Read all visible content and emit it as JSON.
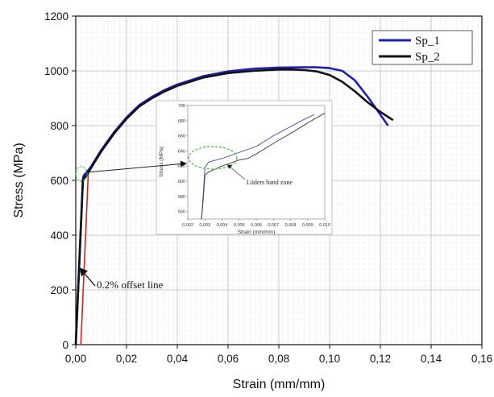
{
  "chart_data": [
    {
      "type": "line",
      "title": "",
      "xlabel": "Strain (mm/mm)",
      "ylabel": "Stress (MPa)",
      "xlim": [
        0,
        0.16
      ],
      "ylim": [
        0,
        1200
      ],
      "xticks": [
        0,
        0.02,
        0.04,
        0.06,
        0.08,
        0.1,
        0.12,
        0.14,
        0.16
      ],
      "xtick_labels": [
        "0,00",
        "0,02",
        "0,04",
        "0,06",
        "0,08",
        "0,10",
        "0,12",
        "0,14",
        "0,16"
      ],
      "yticks": [
        0,
        200,
        400,
        600,
        800,
        1000,
        1200
      ],
      "ytick_labels": [
        "0",
        "200",
        "400",
        "600",
        "800",
        "1000",
        "1200"
      ],
      "grid": true,
      "legend_position": "top-right",
      "series": [
        {
          "name": "Sp_1",
          "color": "#1f1fb4",
          "x": [
            0,
            0.0028,
            0.003,
            0.0035,
            0.004,
            0.005,
            0.006,
            0.008,
            0.01,
            0.015,
            0.02,
            0.025,
            0.03,
            0.035,
            0.04,
            0.05,
            0.06,
            0.07,
            0.08,
            0.09,
            0.095,
            0.1,
            0.105,
            0.11,
            0.115,
            0.12,
            0.123
          ],
          "y": [
            0,
            600,
            615,
            622,
            626,
            638,
            650,
            680,
            710,
            775,
            830,
            875,
            905,
            930,
            950,
            980,
            998,
            1008,
            1012,
            1013,
            1013,
            1010,
            1000,
            965,
            905,
            840,
            800
          ]
        },
        {
          "name": "Sp_2",
          "color": "#111111",
          "x": [
            0,
            0.0028,
            0.003,
            0.004,
            0.005,
            0.006,
            0.008,
            0.01,
            0.015,
            0.02,
            0.025,
            0.03,
            0.035,
            0.04,
            0.05,
            0.06,
            0.07,
            0.08,
            0.085,
            0.09,
            0.095,
            0.1,
            0.105,
            0.11,
            0.115,
            0.12,
            0.125
          ],
          "y": [
            0,
            595,
            605,
            615,
            630,
            645,
            675,
            705,
            770,
            825,
            870,
            900,
            925,
            945,
            975,
            992,
            1000,
            1005,
            1005,
            1003,
            998,
            985,
            960,
            925,
            885,
            850,
            820
          ]
        }
      ],
      "offset_line": {
        "color": "#cc2222",
        "x": [
          0.002,
          0.005
        ],
        "y": [
          0,
          640
        ]
      },
      "annotations": [
        "0.2% offset line"
      ]
    },
    {
      "type": "line",
      "title": "",
      "xlabel": "Strain (mm/mm)",
      "ylabel": "Stress (MPa)",
      "xlim": [
        0.002,
        0.01
      ],
      "ylim": [
        550,
        700
      ],
      "xticks": [
        0.002,
        0.003,
        0.004,
        0.005,
        0.006,
        0.007,
        0.008,
        0.009,
        0.01
      ],
      "xtick_labels": [
        "0,002",
        "0,003",
        "0,004",
        "0,005",
        "0,006",
        "0,007",
        "0,008",
        "0,009",
        "0,010"
      ],
      "yticks": [
        560,
        580,
        600,
        620,
        640,
        660,
        680,
        700
      ],
      "ytick_labels": [
        "560",
        "580",
        "600",
        "620",
        "640",
        "660",
        "680",
        "700"
      ],
      "grid": false,
      "series": [
        {
          "name": "Sp_1",
          "color": "#5555bb",
          "x": [
            0.0028,
            0.0029,
            0.003,
            0.0032,
            0.0035,
            0.004,
            0.005,
            0.006,
            0.007,
            0.008,
            0.009,
            0.0094
          ],
          "y": [
            550,
            580,
            618,
            625,
            627,
            630,
            638,
            646,
            660,
            672,
            684,
            688
          ]
        },
        {
          "name": "Sp_2",
          "color": "#444444",
          "x": [
            0.0028,
            0.0029,
            0.003,
            0.0032,
            0.0035,
            0.004,
            0.005,
            0.0055,
            0.006,
            0.007,
            0.008,
            0.009,
            0.01
          ],
          "y": [
            550,
            575,
            608,
            612,
            615,
            620,
            628,
            630,
            636,
            650,
            663,
            677,
            690
          ]
        }
      ],
      "annotations": [
        "Lüders band zone"
      ]
    }
  ],
  "legend": {
    "items": [
      {
        "label": "Sp_1",
        "color": "#1f1fb4"
      },
      {
        "label": "Sp_2",
        "color": "#111111"
      }
    ]
  }
}
